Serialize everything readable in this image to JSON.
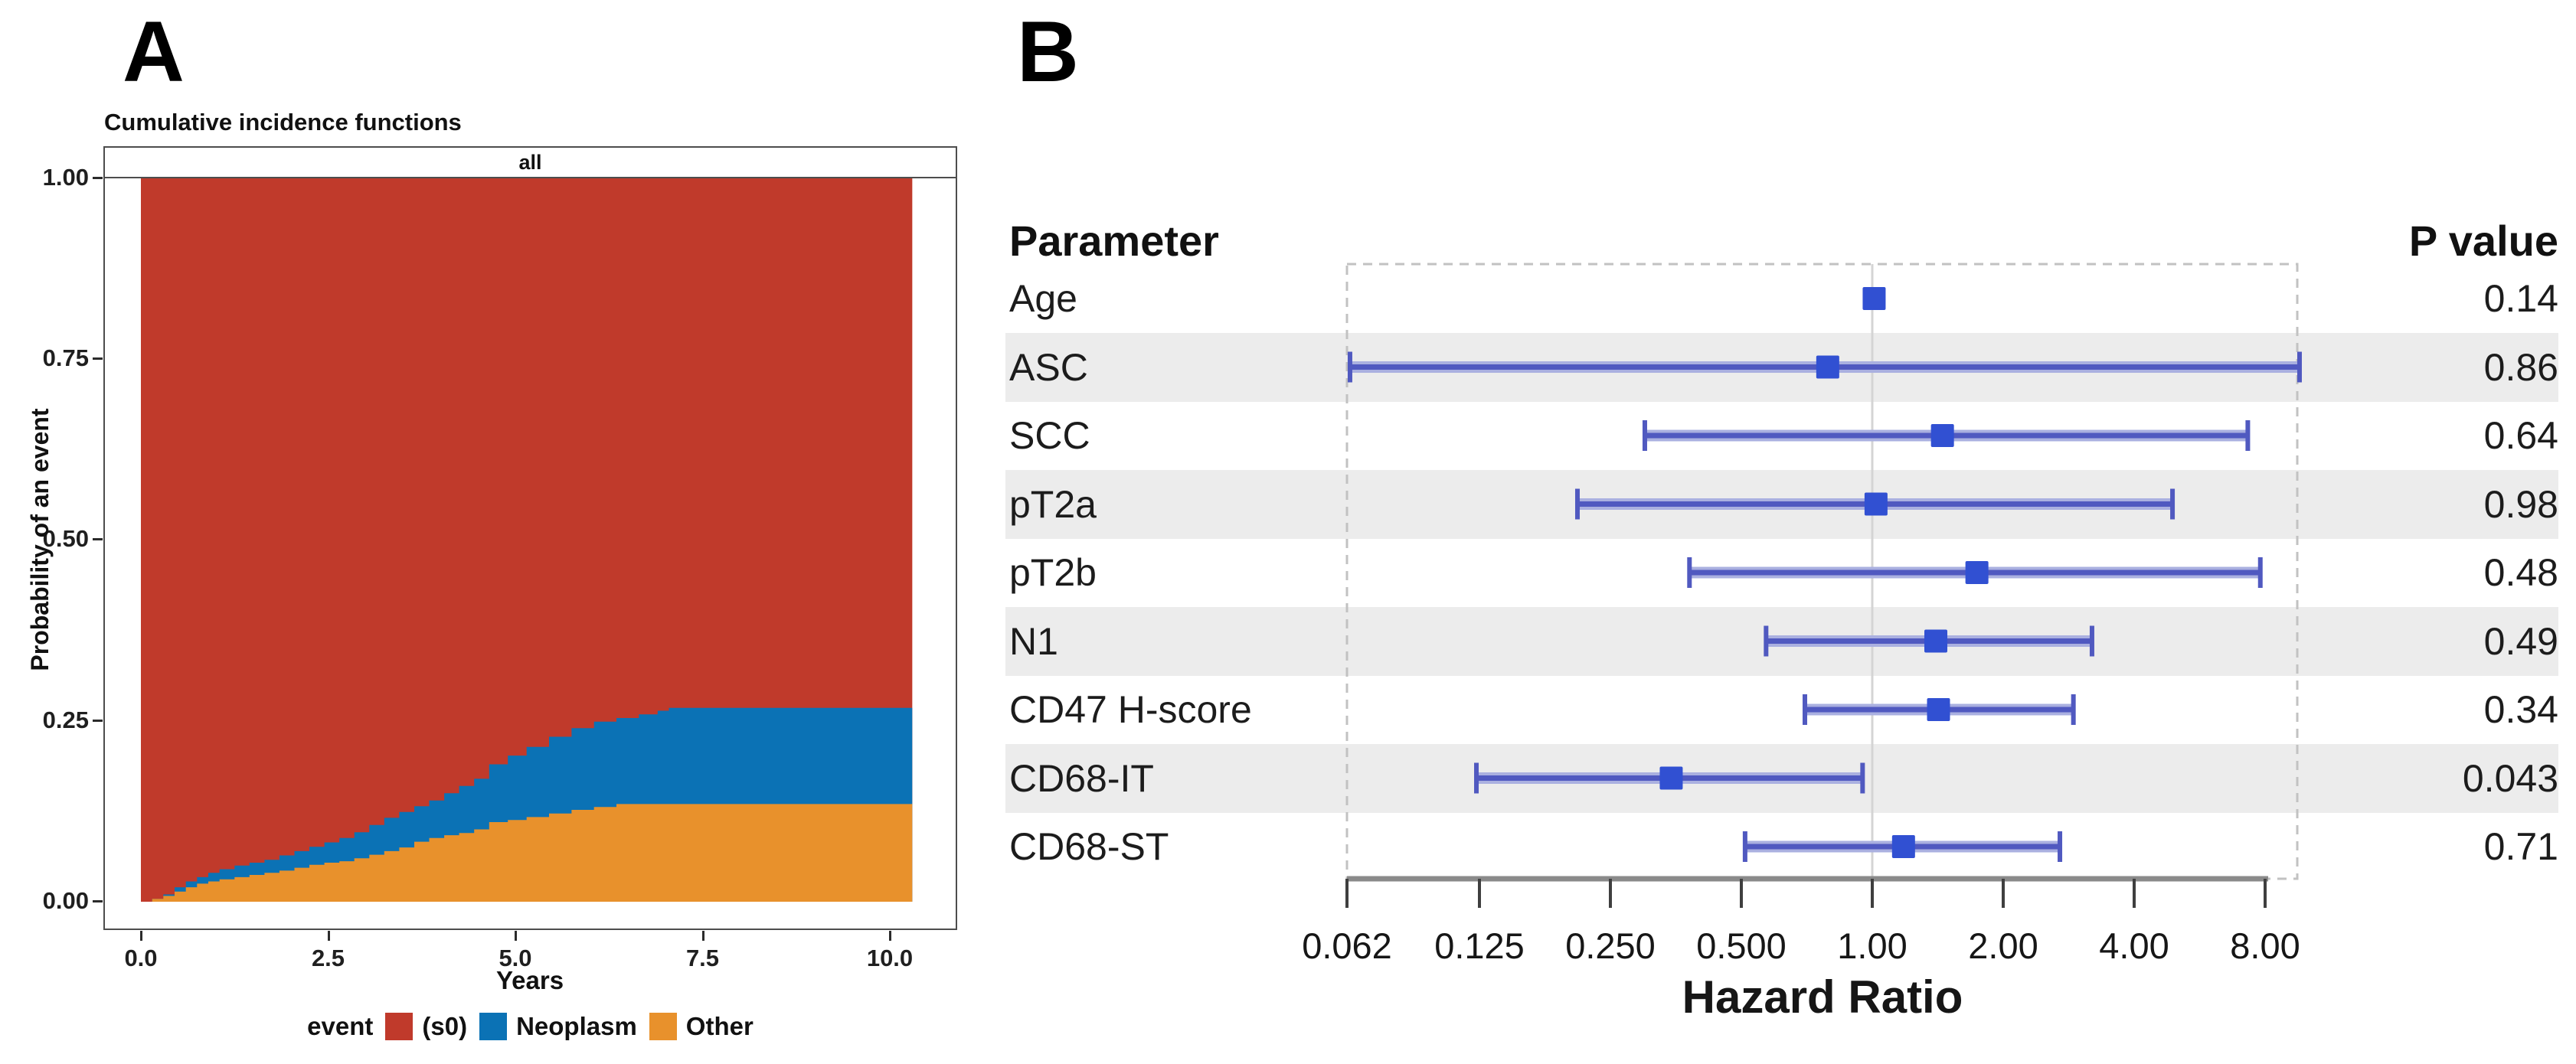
{
  "panel_a": {
    "label": "A",
    "title": "Cumulative incidence functions",
    "facet_label": "all",
    "y_axis": {
      "label": "Probability of an event",
      "ticks": [
        "1.00",
        "0.75",
        "0.50",
        "0.25",
        "0.00"
      ]
    },
    "x_axis": {
      "label": "Years",
      "ticks": [
        "0.0",
        "2.5",
        "5.0",
        "7.5",
        "10.0"
      ]
    },
    "legend": {
      "title": "event",
      "items": [
        {
          "label": "(s0)",
          "color": "#c03a2b"
        },
        {
          "label": "Neoplasm",
          "color": "#0b72b5"
        },
        {
          "label": "Other",
          "color": "#e8912c"
        }
      ]
    }
  },
  "panel_b": {
    "label": "B",
    "columns": {
      "parameter": "Parameter",
      "p_value": "P value"
    },
    "x_axis": {
      "label": "Hazard Ratio"
    }
  },
  "chart_data": [
    {
      "type": "area",
      "title": "Cumulative incidence functions",
      "facet": "all",
      "xlabel": "Years",
      "ylabel": "Probability of an event",
      "xlim": [
        0,
        10.3
      ],
      "ylim": [
        0,
        1
      ],
      "x_ticks": [
        0.0,
        2.5,
        5.0,
        7.5,
        10.0
      ],
      "y_ticks": [
        1.0,
        0.75,
        0.5,
        0.25,
        0.0
      ],
      "grid": false,
      "legend_position": "bottom",
      "legend_title": "event",
      "series": [
        {
          "name": "(s0)",
          "color": "#c03a2b",
          "role": "remainder to 1.0 above Neoplasm"
        },
        {
          "name": "Neoplasm",
          "color": "#0b72b5",
          "role": "stacked between Other and (s0)"
        },
        {
          "name": "Other",
          "color": "#e8912c",
          "role": "bottom stack"
        }
      ],
      "steps_note": "each step = [years, cumulative Other top, cumulative Other+Neoplasm top]; (s0) fills up to 1.0",
      "steps": [
        [
          0.0,
          0.0,
          0.0
        ],
        [
          0.15,
          0.004,
          0.004
        ],
        [
          0.3,
          0.008,
          0.01
        ],
        [
          0.45,
          0.014,
          0.02
        ],
        [
          0.6,
          0.02,
          0.028
        ],
        [
          0.75,
          0.025,
          0.034
        ],
        [
          0.9,
          0.028,
          0.04
        ],
        [
          1.05,
          0.031,
          0.045
        ],
        [
          1.25,
          0.034,
          0.05
        ],
        [
          1.45,
          0.037,
          0.054
        ],
        [
          1.65,
          0.04,
          0.058
        ],
        [
          1.85,
          0.043,
          0.064
        ],
        [
          2.05,
          0.047,
          0.07
        ],
        [
          2.25,
          0.051,
          0.076
        ],
        [
          2.45,
          0.054,
          0.082
        ],
        [
          2.65,
          0.056,
          0.088
        ],
        [
          2.85,
          0.06,
          0.096
        ],
        [
          3.05,
          0.065,
          0.106
        ],
        [
          3.25,
          0.07,
          0.116
        ],
        [
          3.45,
          0.075,
          0.124
        ],
        [
          3.65,
          0.083,
          0.132
        ],
        [
          3.85,
          0.088,
          0.14
        ],
        [
          4.05,
          0.092,
          0.15
        ],
        [
          4.25,
          0.095,
          0.16
        ],
        [
          4.45,
          0.1,
          0.17
        ],
        [
          4.65,
          0.11,
          0.19
        ],
        [
          4.9,
          0.113,
          0.202
        ],
        [
          5.15,
          0.117,
          0.214
        ],
        [
          5.45,
          0.122,
          0.228
        ],
        [
          5.75,
          0.127,
          0.24
        ],
        [
          6.05,
          0.131,
          0.249
        ],
        [
          6.35,
          0.135,
          0.254
        ],
        [
          6.65,
          0.135,
          0.259
        ],
        [
          6.9,
          0.135,
          0.264
        ],
        [
          7.05,
          0.135,
          0.268
        ],
        [
          10.3,
          0.135,
          0.268
        ]
      ]
    },
    {
      "type": "forest",
      "xlabel": "Hazard Ratio",
      "x_scale": "log2",
      "x_ticks": [
        0.062,
        0.125,
        0.25,
        0.5,
        1.0,
        2.0,
        4.0,
        8.0
      ],
      "tick_labels": [
        "0.062",
        "0.125",
        "0.250",
        "0.500",
        "1.00",
        "2.00",
        "4.00",
        "8.00"
      ],
      "reference_line": 1.0,
      "columns": {
        "parameter": "Parameter",
        "p_value": "P value"
      },
      "marker_color": "#3150d2",
      "ci_color": "#5059c0",
      "ci_halo_color": "#aab0e0",
      "shaded_band_color": "#ececec",
      "rows": [
        {
          "label": "Age",
          "hr": 1.01,
          "lo": null,
          "hi": null,
          "p": "0.14",
          "shaded": false
        },
        {
          "label": "ASC",
          "hr": 0.79,
          "lo": 0.063,
          "hi": 9.6,
          "p": "0.86",
          "shaded": true
        },
        {
          "label": "SCC",
          "hr": 1.45,
          "lo": 0.3,
          "hi": 7.3,
          "p": "0.64",
          "shaded": false
        },
        {
          "label": "pT2a",
          "hr": 1.02,
          "lo": 0.21,
          "hi": 4.9,
          "p": "0.98",
          "shaded": true
        },
        {
          "label": "pT2b",
          "hr": 1.74,
          "lo": 0.38,
          "hi": 7.8,
          "p": "0.48",
          "shaded": false
        },
        {
          "label": "N1",
          "hr": 1.4,
          "lo": 0.57,
          "hi": 3.2,
          "p": "0.49",
          "shaded": true
        },
        {
          "label": "CD47 H-score",
          "hr": 1.42,
          "lo": 0.7,
          "hi": 2.9,
          "p": "0.34",
          "shaded": false
        },
        {
          "label": "CD68-IT",
          "hr": 0.345,
          "lo": 0.123,
          "hi": 0.95,
          "p": "0.043",
          "shaded": true
        },
        {
          "label": "CD68-ST",
          "hr": 1.18,
          "lo": 0.51,
          "hi": 2.7,
          "p": "0.71",
          "shaded": false
        }
      ]
    }
  ]
}
